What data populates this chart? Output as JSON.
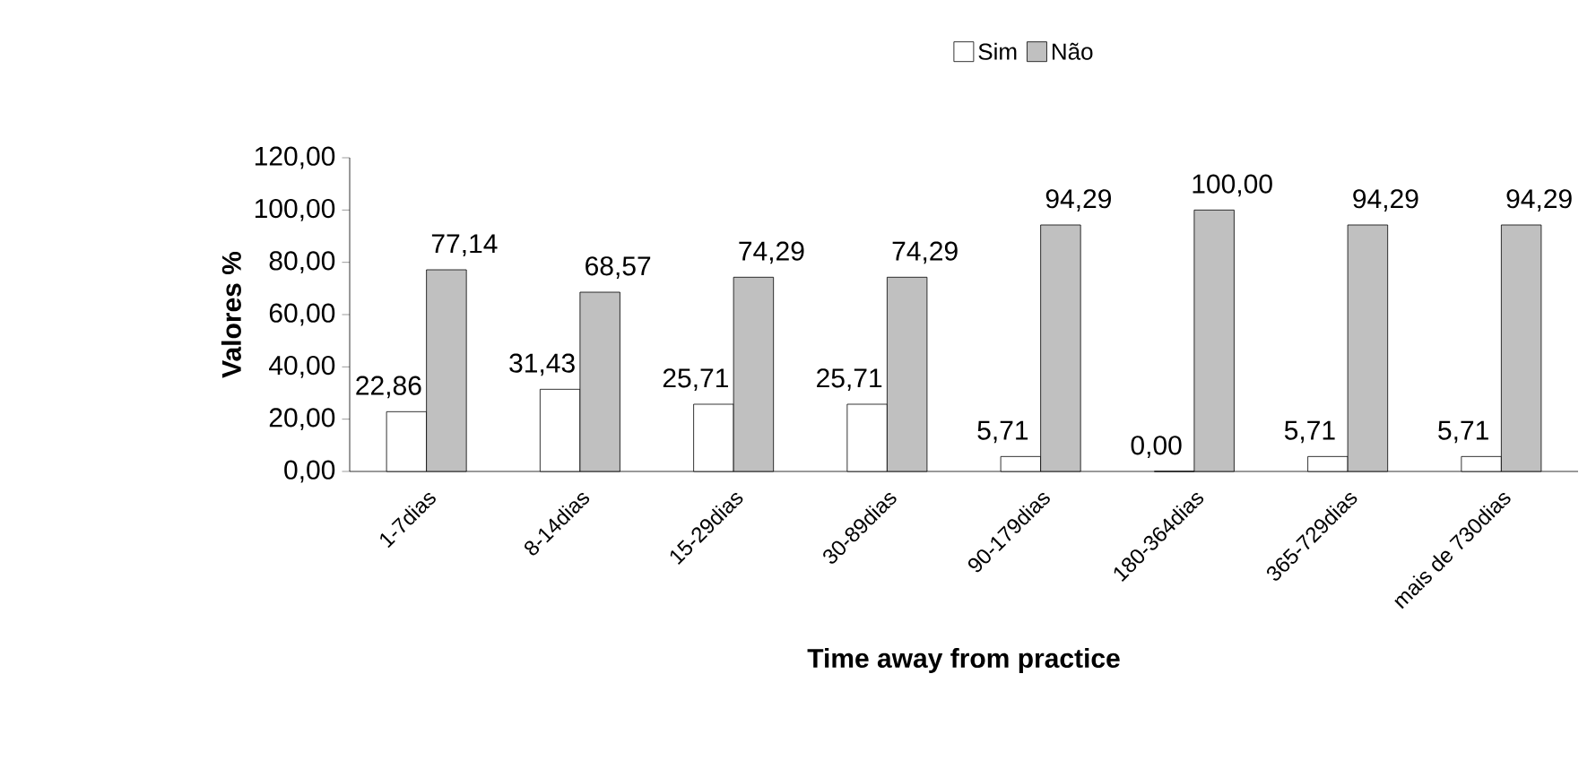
{
  "chart_data": {
    "type": "bar",
    "xlabel": "Time away from practice",
    "ylabel": "Valores %",
    "categories": [
      "1-7dias",
      "8-14dias",
      "15-29dias",
      "30-89dias",
      "90-179dias",
      "180-364dias",
      "365-729dias",
      "mais de 730dias"
    ],
    "series": [
      {
        "name": "Sim",
        "color": "#ffffff",
        "values": [
          22.86,
          31.43,
          25.71,
          25.71,
          5.71,
          0.0,
          5.71,
          5.71
        ],
        "value_labels": [
          "22,86",
          "31,43",
          "25,71",
          "25,71",
          "5,71",
          "0,00",
          "5,71",
          "5,71"
        ]
      },
      {
        "name": "Não",
        "color": "#c0c0c0",
        "values": [
          77.14,
          68.57,
          74.29,
          74.29,
          94.29,
          100.0,
          94.29,
          94.29
        ],
        "value_labels": [
          "77,14",
          "68,57",
          "74,29",
          "74,29",
          "94,29",
          "100,00",
          "94,29",
          "94,29"
        ]
      }
    ],
    "ylim": [
      0,
      120
    ],
    "yticks": [
      {
        "value": 0,
        "label": "0,00"
      },
      {
        "value": 20,
        "label": "20,00"
      },
      {
        "value": 40,
        "label": "40,00"
      },
      {
        "value": 60,
        "label": "60,00"
      },
      {
        "value": 80,
        "label": "80,00"
      },
      {
        "value": 100,
        "label": "100,00"
      },
      {
        "value": 120,
        "label": "120,00"
      }
    ],
    "legend": "top"
  }
}
